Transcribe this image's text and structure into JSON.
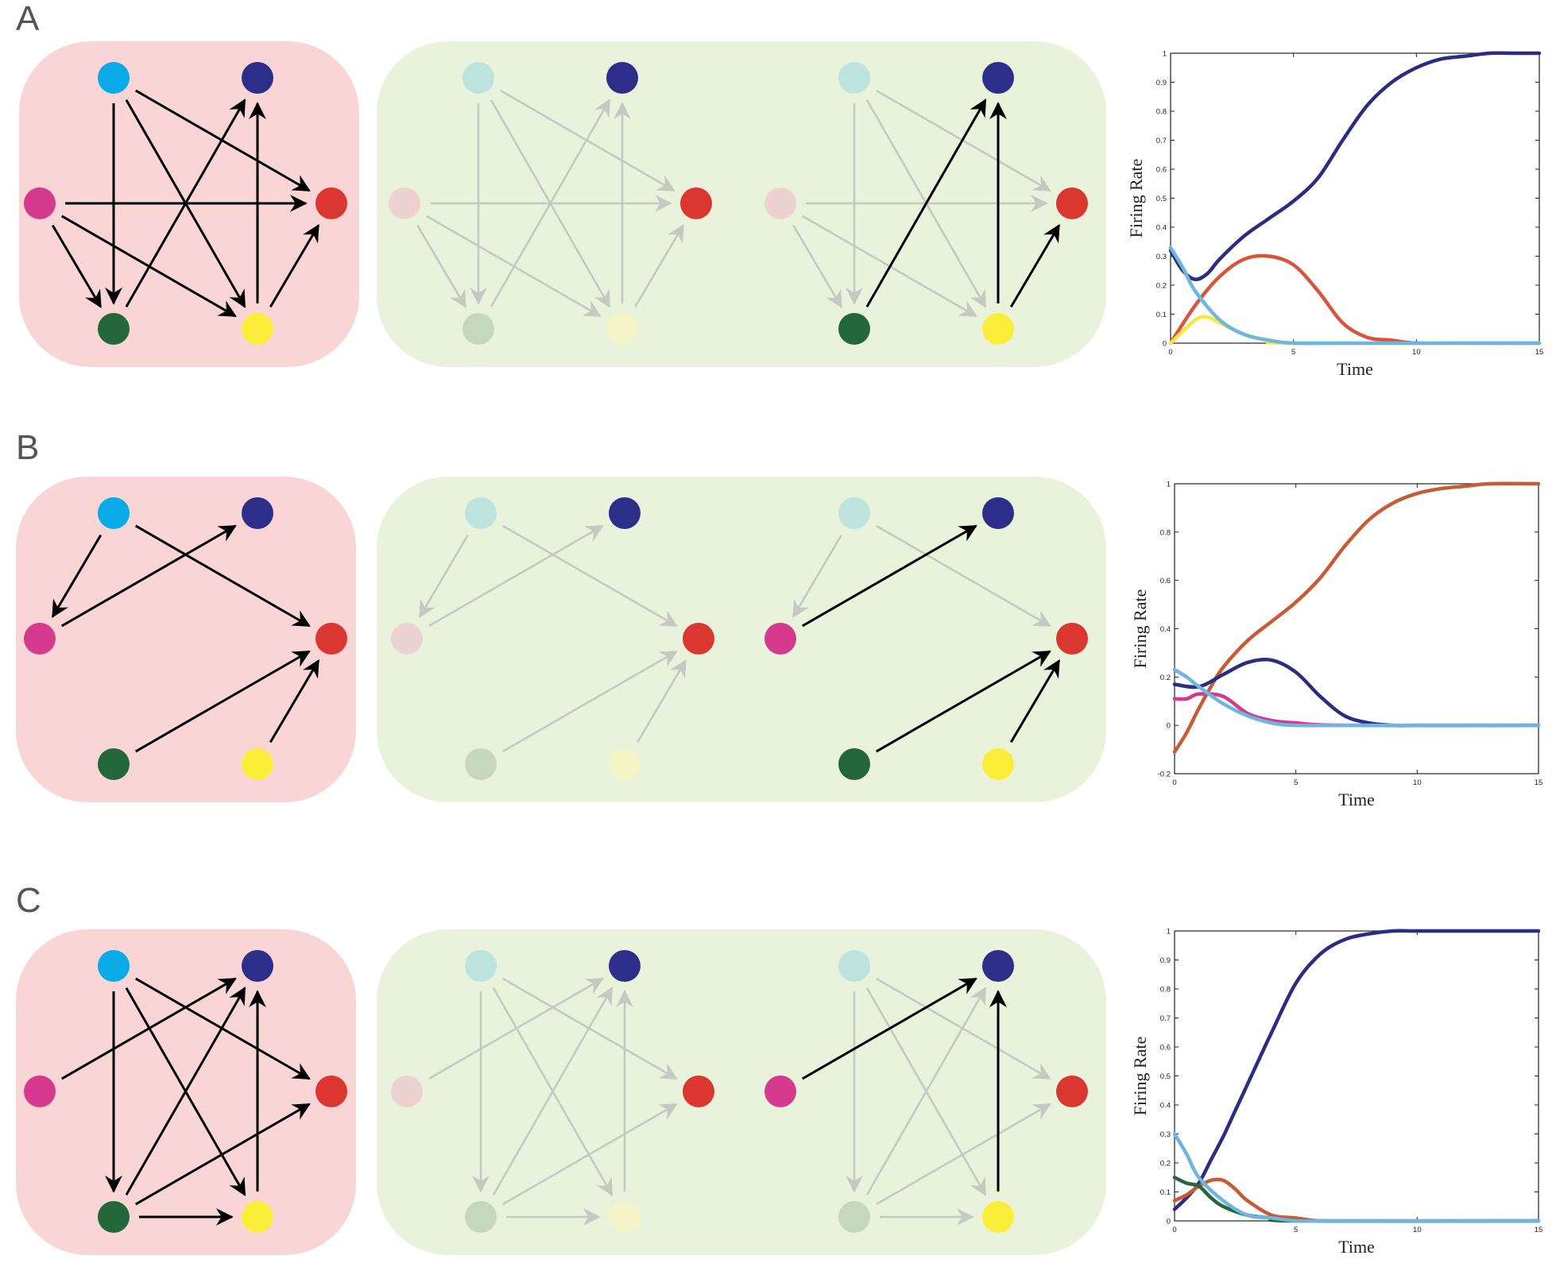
{
  "colors": {
    "pink_bg": "#f9d5d5",
    "green_bg": "#e9f3dc",
    "arrow_active": "#000000",
    "arrow_faded": "#c6c8c2",
    "node_full": {
      "lightblue": "#0aaae8",
      "navy": "#2d2d8a",
      "magenta": "#d63a8f",
      "red": "#dc3630",
      "darkgreen": "#24673a",
      "yellow": "#fbee3a"
    },
    "node_faded": {
      "lightblue": "#bde3dd",
      "navy": "#2d2d8a",
      "magenta": "#ecd3d2",
      "red": "#dc3630",
      "darkgreen": "#c5d8be",
      "yellow": "#f3f5c7"
    },
    "series": {
      "navy": "#2b2d82",
      "orange": "#c95a36",
      "red": "#d9543a",
      "yellow": "#f7e83f",
      "lightblue": "#6cb6e0",
      "magenta": "#d6378f",
      "darkgreen": "#25663b"
    }
  },
  "panels": [
    {
      "label": "A",
      "full_edges": [
        [
          "lightblue",
          "darkgreen"
        ],
        [
          "lightblue",
          "yellow"
        ],
        [
          "lightblue",
          "red"
        ],
        [
          "magenta",
          "red"
        ],
        [
          "magenta",
          "darkgreen"
        ],
        [
          "magenta",
          "yellow"
        ],
        [
          "darkgreen",
          "navy"
        ],
        [
          "yellow",
          "navy"
        ],
        [
          "yellow",
          "red"
        ]
      ],
      "active_edges": [
        [
          "darkgreen",
          "navy"
        ],
        [
          "yellow",
          "navy"
        ],
        [
          "yellow",
          "red"
        ]
      ],
      "active_nodes": [
        "navy",
        "red",
        "darkgreen",
        "yellow"
      ],
      "chart": {
        "type": "line",
        "ylabel": "Firing Rate",
        "xlabel": "Time",
        "xlim": [
          0,
          15
        ],
        "ylim": [
          0,
          1
        ],
        "xticks": [
          "0",
          "5",
          "10",
          "15"
        ],
        "yticks": [
          "0",
          "0.1",
          "0.2",
          "0.3",
          "0.4",
          "0.5",
          "0.6",
          "0.7",
          "0.8",
          "0.9",
          "1"
        ]
      }
    },
    {
      "label": "B",
      "full_edges": [
        [
          "lightblue",
          "magenta"
        ],
        [
          "lightblue",
          "red"
        ],
        [
          "magenta",
          "navy"
        ],
        [
          "darkgreen",
          "red"
        ],
        [
          "yellow",
          "red"
        ]
      ],
      "active_edges": [
        [
          "magenta",
          "navy"
        ],
        [
          "darkgreen",
          "red"
        ],
        [
          "yellow",
          "red"
        ]
      ],
      "active_nodes": [
        "navy",
        "red",
        "magenta",
        "darkgreen",
        "yellow"
      ],
      "chart": {
        "type": "line",
        "ylabel": "Firing Rate",
        "xlabel": "Time",
        "xlim": [
          0,
          15
        ],
        "ylim": [
          -0.2,
          1
        ],
        "xticks": [
          "0",
          "5",
          "10",
          "15"
        ],
        "yticks": [
          "-0.2",
          "0",
          "0.2",
          "0.4",
          "0.6",
          "0.8",
          "1"
        ]
      }
    },
    {
      "label": "C",
      "full_edges": [
        [
          "lightblue",
          "darkgreen"
        ],
        [
          "lightblue",
          "yellow"
        ],
        [
          "lightblue",
          "red"
        ],
        [
          "magenta",
          "navy"
        ],
        [
          "darkgreen",
          "navy"
        ],
        [
          "darkgreen",
          "red"
        ],
        [
          "darkgreen",
          "yellow"
        ],
        [
          "yellow",
          "navy"
        ]
      ],
      "active_edges": [
        [
          "magenta",
          "navy"
        ],
        [
          "yellow",
          "navy"
        ]
      ],
      "active_nodes": [
        "navy",
        "red",
        "magenta",
        "yellow"
      ],
      "chart": {
        "type": "line",
        "ylabel": "Firing Rate",
        "xlabel": "Time",
        "xlim": [
          0,
          15
        ],
        "ylim": [
          0,
          1
        ],
        "xticks": [
          "0",
          "5",
          "10",
          "15"
        ],
        "yticks": [
          "0",
          "0.1",
          "0.2",
          "0.3",
          "0.4",
          "0.5",
          "0.6",
          "0.7",
          "0.8",
          "0.9",
          "1"
        ]
      }
    }
  ],
  "chart_data": [
    {
      "type": "line",
      "title": "",
      "xlabel": "Time",
      "ylabel": "Firing Rate",
      "xlim": [
        0,
        15
      ],
      "ylim": [
        0,
        1
      ],
      "series": [
        {
          "name": "navy",
          "color": "navy",
          "x": [
            0,
            0.5,
            1,
            1.5,
            2,
            3,
            4,
            5,
            6,
            7,
            8,
            9,
            10,
            11,
            12,
            13,
            14,
            15
          ],
          "values": [
            0.32,
            0.25,
            0.22,
            0.24,
            0.29,
            0.37,
            0.43,
            0.49,
            0.57,
            0.7,
            0.82,
            0.9,
            0.95,
            0.98,
            0.99,
            1.0,
            1.0,
            1.0
          ]
        },
        {
          "name": "red",
          "color": "red",
          "x": [
            0,
            1,
            2,
            3,
            4,
            5,
            6,
            7,
            8,
            9,
            10,
            12,
            15
          ],
          "values": [
            0.0,
            0.13,
            0.23,
            0.29,
            0.3,
            0.27,
            0.18,
            0.07,
            0.02,
            0.01,
            0.0,
            0.0,
            0.0
          ]
        },
        {
          "name": "yellow",
          "color": "yellow",
          "x": [
            0,
            1,
            1.5,
            2,
            3,
            4,
            5,
            15
          ],
          "values": [
            0.0,
            0.08,
            0.09,
            0.07,
            0.03,
            0.01,
            0.0,
            0.0
          ]
        },
        {
          "name": "lightblue",
          "color": "lightblue",
          "x": [
            0,
            0.5,
            1,
            2,
            3,
            4,
            5,
            7,
            15
          ],
          "values": [
            0.33,
            0.26,
            0.18,
            0.08,
            0.03,
            0.01,
            0.0,
            0.0,
            0.0
          ]
        }
      ]
    },
    {
      "type": "line",
      "title": "",
      "xlabel": "Time",
      "ylabel": "Firing Rate",
      "xlim": [
        0,
        15
      ],
      "ylim": [
        -0.2,
        1
      ],
      "series": [
        {
          "name": "orange",
          "color": "orange",
          "x": [
            0,
            0.5,
            1,
            1.5,
            2,
            3,
            4,
            5,
            6,
            7,
            8,
            9,
            10,
            11,
            12,
            13,
            15
          ],
          "values": [
            -0.11,
            -0.03,
            0.07,
            0.16,
            0.24,
            0.35,
            0.43,
            0.51,
            0.61,
            0.74,
            0.85,
            0.92,
            0.96,
            0.98,
            0.99,
            1.0,
            1.0
          ]
        },
        {
          "name": "navy",
          "color": "navy",
          "x": [
            0,
            1,
            2,
            3,
            4,
            5,
            6,
            7,
            8,
            9,
            10,
            12,
            15
          ],
          "values": [
            0.17,
            0.16,
            0.21,
            0.26,
            0.27,
            0.22,
            0.12,
            0.04,
            0.01,
            0.0,
            0.0,
            0.0,
            0.0
          ]
        },
        {
          "name": "magenta",
          "color": "magenta",
          "x": [
            0,
            0.5,
            1,
            2,
            3,
            4,
            5,
            7,
            15
          ],
          "values": [
            0.11,
            0.11,
            0.13,
            0.12,
            0.05,
            0.02,
            0.01,
            0.0,
            0.0
          ]
        },
        {
          "name": "lightblue",
          "color": "lightblue",
          "x": [
            0,
            0.5,
            1,
            2,
            3,
            4,
            5,
            7,
            15
          ],
          "values": [
            0.23,
            0.2,
            0.16,
            0.09,
            0.04,
            0.01,
            0.0,
            0.0,
            0.0
          ]
        }
      ]
    },
    {
      "type": "line",
      "title": "",
      "xlabel": "Time",
      "ylabel": "Firing Rate",
      "xlim": [
        0,
        15
      ],
      "ylim": [
        0,
        1
      ],
      "series": [
        {
          "name": "navy",
          "color": "navy",
          "x": [
            0,
            0.5,
            1,
            1.5,
            2,
            2.5,
            3,
            4,
            5,
            6,
            7,
            8,
            9,
            10,
            12,
            15
          ],
          "values": [
            0.04,
            0.08,
            0.13,
            0.21,
            0.29,
            0.38,
            0.47,
            0.65,
            0.82,
            0.92,
            0.97,
            0.99,
            1.0,
            1.0,
            1.0,
            1.0
          ]
        },
        {
          "name": "orange",
          "color": "orange",
          "x": [
            0,
            0.5,
            1,
            1.5,
            2,
            2.5,
            3,
            4,
            5,
            6,
            8,
            10,
            15
          ],
          "values": [
            0.07,
            0.09,
            0.12,
            0.14,
            0.14,
            0.11,
            0.07,
            0.02,
            0.01,
            0.0,
            0.0,
            0.0,
            0.0
          ]
        },
        {
          "name": "darkgreen",
          "color": "darkgreen",
          "x": [
            0,
            0.5,
            1,
            1.5,
            2,
            3,
            4,
            5,
            15
          ],
          "values": [
            0.15,
            0.13,
            0.12,
            0.08,
            0.05,
            0.02,
            0.01,
            0.0,
            0.0
          ]
        },
        {
          "name": "lightblue",
          "color": "lightblue",
          "x": [
            0,
            0.5,
            1,
            2,
            3,
            4,
            5,
            6,
            15
          ],
          "values": [
            0.3,
            0.23,
            0.15,
            0.07,
            0.02,
            0.01,
            0.0,
            0.0,
            0.0
          ]
        }
      ]
    }
  ]
}
